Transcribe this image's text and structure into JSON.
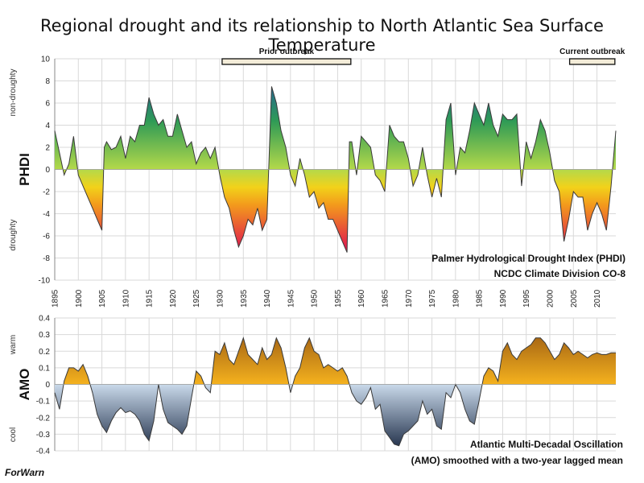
{
  "title": "Regional drought and its relationship to North Atlantic Sea Surface Temperature",
  "credit": "ForWarn",
  "colors": {
    "phdi_high": "#1f3fbf",
    "phdi_mid": "#2e9a56",
    "phdi_zero": "#b4d94a",
    "phdi_yellow": "#f2d21a",
    "phdi_orange": "#f39a1c",
    "phdi_low": "#e01e4c",
    "amo_warm_top": "#8a4a10",
    "amo_warm_bottom": "#f5b21e",
    "amo_cool_top": "#c9d9ea",
    "amo_cool_bottom": "#1b2a44",
    "outline": "#3a3a3a",
    "grid": "#d9d9d9"
  },
  "chart_data": [
    {
      "type": "area",
      "id": "phdi",
      "ylabel": "PHDI",
      "ylabel_high": "non-droughty",
      "ylabel_low": "droughty",
      "ylim": [
        -10,
        10
      ],
      "yticks": [
        "10",
        "8",
        "6",
        "4",
        "2",
        "0",
        "-2",
        "-4",
        "-6",
        "-8",
        "-10"
      ],
      "xlim": [
        1895,
        2014
      ],
      "xticks": [
        "1895",
        "1900",
        "1905",
        "1910",
        "1915",
        "1920",
        "1925",
        "1930",
        "1935",
        "1940",
        "1945",
        "1950",
        "1955",
        "1960",
        "1965",
        "1970",
        "1975",
        "1980",
        "1985",
        "1990",
        "1995",
        "2000",
        "2005",
        "2010"
      ],
      "annotation_line1": "Palmer Hydrological Drought Index (PHDI)",
      "annotation_line2": "NCDC Climate Division CO-8",
      "periods": [
        {
          "label": "Prior outbreak",
          "start": 1930.5,
          "end": 1957.8
        },
        {
          "label": "Current outbreak",
          "start": 2004.2,
          "end": 2013.8
        }
      ],
      "x": [
        1895,
        1896,
        1897,
        1898,
        1899,
        1900,
        1901,
        1902,
        1903,
        1904,
        1905,
        1905.5,
        1906,
        1907,
        1908,
        1909,
        1910,
        1911,
        1912,
        1913,
        1914,
        1915,
        1916,
        1917,
        1918,
        1919,
        1920,
        1921,
        1922,
        1923,
        1924,
        1925,
        1926,
        1927,
        1928,
        1929,
        1930,
        1931,
        1932,
        1933,
        1934,
        1935,
        1936,
        1937,
        1938,
        1939,
        1940,
        1941,
        1942,
        1943,
        1944,
        1945,
        1946,
        1947,
        1948,
        1949,
        1950,
        1951,
        1952,
        1953,
        1954,
        1955,
        1956,
        1957,
        1957.5,
        1958,
        1959,
        1960,
        1961,
        1962,
        1963,
        1964,
        1965,
        1966,
        1967,
        1968,
        1969,
        1970,
        1971,
        1972,
        1973,
        1974,
        1975,
        1976,
        1977,
        1978,
        1979,
        1980,
        1981,
        1982,
        1983,
        1984,
        1985,
        1986,
        1987,
        1988,
        1989,
        1990,
        1991,
        1992,
        1993,
        1994,
        1995,
        1996,
        1997,
        1998,
        1999,
        2000,
        2001,
        2002,
        2003,
        2004,
        2005,
        2006,
        2007,
        2008,
        2009,
        2010,
        2011,
        2012,
        2013,
        2014
      ],
      "values": [
        3.5,
        1.5,
        -0.5,
        0.5,
        3.0,
        -0.5,
        -1.5,
        -2.5,
        -3.5,
        -4.5,
        -5.5,
        2.0,
        2.5,
        1.8,
        2.0,
        3.0,
        1.0,
        3.0,
        2.5,
        4.0,
        4.0,
        6.5,
        5.0,
        4.0,
        4.5,
        3.0,
        3.0,
        5.0,
        3.5,
        2.0,
        2.5,
        0.5,
        1.5,
        2.0,
        1.0,
        2.0,
        -0.5,
        -2.5,
        -3.5,
        -5.5,
        -7.0,
        -6.0,
        -4.5,
        -5.0,
        -3.5,
        -5.5,
        -4.5,
        7.5,
        6.0,
        3.5,
        2.0,
        -0.5,
        -1.5,
        1.0,
        -0.5,
        -2.5,
        -2.0,
        -3.5,
        -3.0,
        -4.5,
        -4.5,
        -5.5,
        -6.5,
        -7.5,
        2.5,
        2.5,
        -0.5,
        3.0,
        2.5,
        2.0,
        -0.5,
        -1.0,
        -2.0,
        4.0,
        3.0,
        2.5,
        2.5,
        1.0,
        -1.5,
        -0.5,
        2.0,
        -0.5,
        -2.5,
        -0.8,
        -2.5,
        4.5,
        6.0,
        -0.5,
        2.0,
        1.5,
        3.5,
        6.0,
        5.0,
        4.0,
        6.0,
        4.0,
        3.0,
        5.0,
        4.5,
        4.5,
        5.0,
        -1.5,
        2.5,
        1.0,
        2.5,
        4.5,
        3.5,
        1.5,
        -1.0,
        -2.0,
        -6.5,
        -4.5,
        -2.0,
        -2.5,
        -2.5,
        -5.5,
        -4.0,
        -3.0,
        -4.0,
        -5.5,
        -1.5,
        3.5
      ]
    },
    {
      "type": "area",
      "id": "amo",
      "ylabel": "AMO",
      "ylabel_high": "warm",
      "ylabel_low": "cool",
      "ylim": [
        -0.4,
        0.4
      ],
      "yticks": [
        "0.4",
        "0.3",
        "0.2",
        "0.1",
        "0",
        "-0.1",
        "-0.2",
        "-0.3",
        "-0.4"
      ],
      "xlim": [
        1895,
        2014
      ],
      "annotation_line1": "Atlantic Multi-Decadal Oscillation",
      "annotation_line2": "(AMO) smoothed with a two-year lagged mean",
      "x": [
        1895,
        1896,
        1897,
        1898,
        1899,
        1900,
        1901,
        1902,
        1903,
        1904,
        1905,
        1906,
        1907,
        1908,
        1909,
        1910,
        1911,
        1912,
        1913,
        1914,
        1915,
        1916,
        1917,
        1918,
        1919,
        1920,
        1921,
        1922,
        1923,
        1924,
        1925,
        1926,
        1927,
        1928,
        1929,
        1930,
        1931,
        1932,
        1933,
        1934,
        1935,
        1936,
        1937,
        1938,
        1939,
        1940,
        1941,
        1942,
        1943,
        1944,
        1945,
        1946,
        1947,
        1948,
        1949,
        1950,
        1951,
        1952,
        1953,
        1954,
        1955,
        1956,
        1957,
        1958,
        1959,
        1960,
        1961,
        1962,
        1963,
        1964,
        1965,
        1966,
        1967,
        1968,
        1969,
        1970,
        1971,
        1972,
        1973,
        1974,
        1975,
        1976,
        1977,
        1978,
        1979,
        1980,
        1981,
        1982,
        1983,
        1984,
        1985,
        1986,
        1987,
        1988,
        1989,
        1990,
        1991,
        1992,
        1993,
        1994,
        1995,
        1996,
        1997,
        1998,
        1999,
        2000,
        2001,
        2002,
        2003,
        2004,
        2005,
        2006,
        2007,
        2008,
        2009,
        2010,
        2011,
        2012,
        2013,
        2014
      ],
      "values": [
        -0.05,
        -0.15,
        0.02,
        0.1,
        0.1,
        0.08,
        0.12,
        0.05,
        -0.05,
        -0.18,
        -0.25,
        -0.29,
        -0.22,
        -0.17,
        -0.14,
        -0.17,
        -0.16,
        -0.18,
        -0.22,
        -0.3,
        -0.34,
        -0.22,
        0.0,
        -0.15,
        -0.23,
        -0.25,
        -0.27,
        -0.3,
        -0.25,
        -0.08,
        0.08,
        0.05,
        -0.02,
        -0.05,
        0.2,
        0.18,
        0.25,
        0.15,
        0.12,
        0.2,
        0.28,
        0.18,
        0.15,
        0.12,
        0.22,
        0.15,
        0.18,
        0.28,
        0.22,
        0.1,
        -0.05,
        0.05,
        0.1,
        0.22,
        0.28,
        0.2,
        0.18,
        0.1,
        0.12,
        0.1,
        0.08,
        0.1,
        0.05,
        -0.05,
        -0.1,
        -0.12,
        -0.08,
        -0.02,
        -0.15,
        -0.12,
        -0.28,
        -0.32,
        -0.36,
        -0.37,
        -0.3,
        -0.28,
        -0.25,
        -0.22,
        -0.1,
        -0.18,
        -0.15,
        -0.25,
        -0.27,
        -0.05,
        -0.08,
        0.0,
        -0.05,
        -0.15,
        -0.22,
        -0.24,
        -0.1,
        0.05,
        0.1,
        0.08,
        0.02,
        0.2,
        0.25,
        0.18,
        0.15,
        0.2,
        0.22,
        0.24,
        0.28,
        0.28,
        0.25,
        0.2,
        0.15,
        0.18,
        0.25,
        0.22,
        0.18,
        0.2,
        0.18,
        0.16,
        0.18,
        0.19,
        0.18,
        0.18,
        0.19,
        0.19
      ]
    }
  ]
}
